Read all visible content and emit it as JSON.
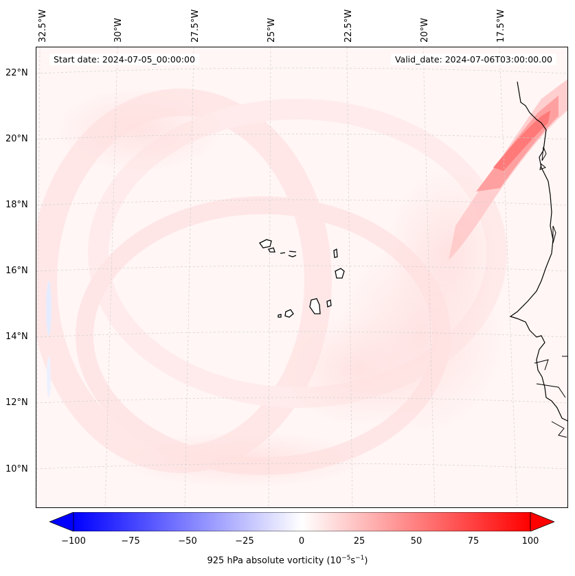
{
  "header": {
    "start_label": "Start date: 2024-07-05_00:00:00",
    "valid_label": "Valid_date: 2024-07-06T03:00:00.00"
  },
  "lon_labels": [
    "32.5°W",
    "30°W",
    "27.5°W",
    "25°W",
    "22.5°W",
    "20°W",
    "17.5°W"
  ],
  "lat_labels": [
    "22°N",
    "20°N",
    "18°N",
    "16°N",
    "14°N",
    "12°N",
    "10°N"
  ],
  "colorbar": {
    "ticks": [
      "−100",
      "−75",
      "−50",
      "−25",
      "0",
      "25",
      "50",
      "75",
      "100"
    ],
    "range": [
      -100,
      100
    ],
    "label": "925 hPa absolute vorticity (10",
    "label_exp1": "−5",
    "label_mid": "s",
    "label_exp2": "−1",
    "label_end": ")",
    "colors": {
      "min": "#0000ff",
      "mid": "#ffffff",
      "max": "#ff0000"
    }
  }
}
